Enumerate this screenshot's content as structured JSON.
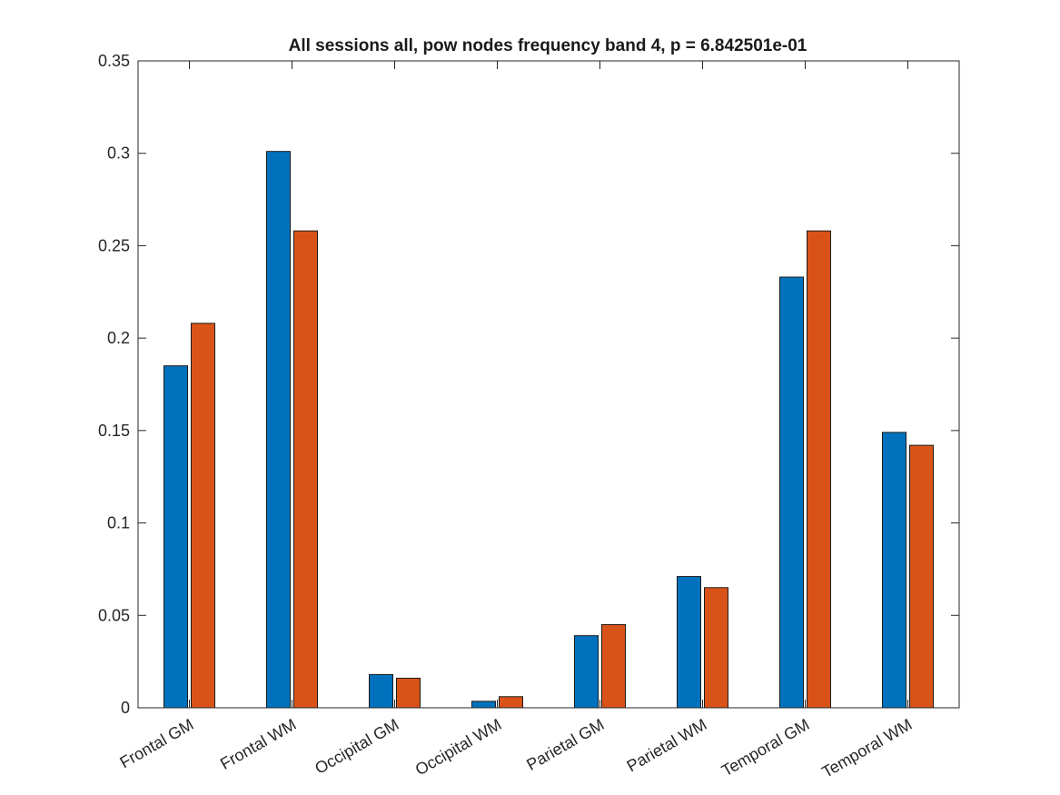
{
  "chart_data": {
    "type": "bar",
    "title": "All sessions all, pow nodes frequency band 4, p = 6.842501e-01",
    "xlabel": "",
    "ylabel": "",
    "ylim": [
      0,
      0.35
    ],
    "yticks": [
      0,
      0.05,
      0.1,
      0.15,
      0.2,
      0.25,
      0.3,
      0.35
    ],
    "ytick_labels": [
      "0",
      "0.05",
      "0.1",
      "0.15",
      "0.2",
      "0.25",
      "0.3",
      "0.35"
    ],
    "grid": false,
    "legend": "none",
    "categories": [
      "Frontal GM",
      "Frontal WM",
      "Occipital GM",
      "Occipital WM",
      "Parietal GM",
      "Parietal WM",
      "Temporal GM",
      "Temporal WM"
    ],
    "series": [
      {
        "color": "#0072BD",
        "values": [
          0.185,
          0.301,
          0.018,
          0.0035,
          0.039,
          0.071,
          0.233,
          0.149
        ]
      },
      {
        "color": "#D95319",
        "values": [
          0.208,
          0.258,
          0.016,
          0.006,
          0.045,
          0.065,
          0.258,
          0.142
        ]
      }
    ]
  }
}
